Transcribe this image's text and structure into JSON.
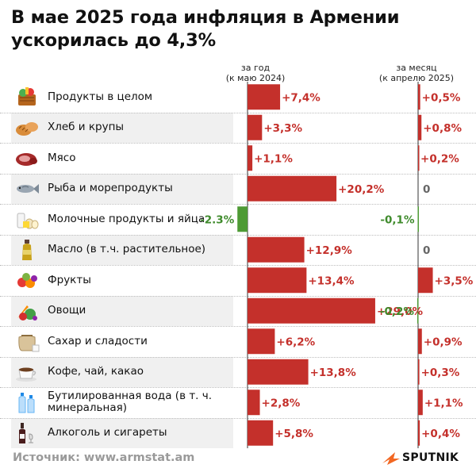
{
  "title": "В мае 2025 года инфляция в Армении ускорилась до 4,3%",
  "source": "Источник: www.armstat.am",
  "logo_text": "SPUTNIK",
  "colors": {
    "positive": "#c4302b",
    "negative": "#4e9a35",
    "zero": "#666666",
    "positive_text": "#c4302b",
    "negative_text": "#3f8b2c"
  },
  "chart_data": {
    "type": "bar",
    "title": "В мае 2025 года инфляция в Армении ускорилась до 4,3%",
    "categories": [
      "Продукты в целом",
      "Хлеб и крупы",
      "Мясо",
      "Рыба и морепродукты",
      "Молочные продукты и яйца",
      "Масло (в т.ч. растительное)",
      "Фрукты",
      "Овощи",
      "Сахар и сладости",
      "Кофе, чай, какао",
      "Бутилированная вода (в т. ч. минеральная)",
      "Алкоголь и сигареты"
    ],
    "icons": [
      "grocery-basket-icon",
      "bread-icon",
      "meat-icon",
      "fish-icon",
      "dairy-eggs-icon",
      "oil-bottle-icon",
      "fruits-icon",
      "vegetables-icon",
      "sugar-sack-icon",
      "coffee-cup-icon",
      "water-bottles-icon",
      "wine-bottle-icon"
    ],
    "series": [
      {
        "name": "за год (к маю 2024)",
        "values": [
          7.4,
          3.3,
          1.1,
          20.2,
          -2.3,
          12.9,
          13.4,
          29.0,
          6.2,
          13.8,
          2.8,
          5.8
        ],
        "labels": [
          "+7,4%",
          "+3,3%",
          "+1,1%",
          "+20,2%",
          "-2.3%",
          "+12,9%",
          "+13,4%",
          "+29,0%",
          "+6,2%",
          "+13,8%",
          "+2,8%",
          "+5,8%"
        ]
      },
      {
        "name": "за месяц (к апрелю 2025)",
        "values": [
          0.5,
          0.8,
          0.2,
          0,
          -0.1,
          0,
          3.5,
          -0.2,
          0.9,
          0.3,
          1.1,
          0.4
        ],
        "labels": [
          "+0,5%",
          "+0,8%",
          "+0,2%",
          "0",
          "-0,1%",
          "0",
          "+3,5%",
          "-0,2%",
          "+0,9%",
          "+0,3%",
          "+1,1%",
          "+0,4%"
        ]
      }
    ],
    "legend": "column headers above each bar group"
  }
}
